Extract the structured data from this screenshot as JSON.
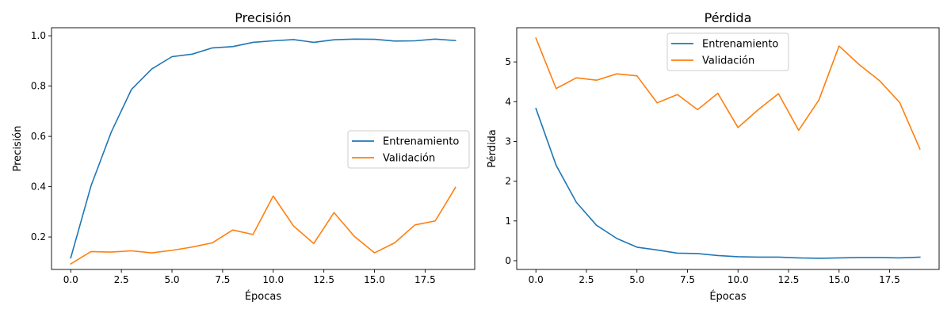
{
  "chart_data": [
    {
      "type": "line",
      "title": "Precisión",
      "xlabel": "Épocas",
      "ylabel": "Precisión",
      "x": [
        0,
        1,
        2,
        3,
        4,
        5,
        6,
        7,
        8,
        9,
        10,
        11,
        12,
        13,
        14,
        15,
        16,
        17,
        18,
        19
      ],
      "xlim": [
        -0.95,
        19.95
      ],
      "ylim": [
        0.071,
        1.032
      ],
      "xticks": [
        0.0,
        2.5,
        5.0,
        7.5,
        10.0,
        12.5,
        15.0,
        17.5
      ],
      "xtick_labels": [
        "0.0",
        "2.5",
        "5.0",
        "7.5",
        "10.0",
        "12.5",
        "15.0",
        "17.5"
      ],
      "yticks": [
        0.2,
        0.4,
        0.6,
        0.8,
        1.0
      ],
      "ytick_labels": [
        "0.2",
        "0.4",
        "0.6",
        "0.8",
        "1.0"
      ],
      "grid": false,
      "legend_position": "center-right",
      "series": [
        {
          "name": "Entrenamiento",
          "color": "#1f77b4",
          "values": [
            0.117,
            0.403,
            0.617,
            0.787,
            0.868,
            0.917,
            0.927,
            0.952,
            0.957,
            0.974,
            0.98,
            0.985,
            0.974,
            0.984,
            0.987,
            0.986,
            0.979,
            0.98,
            0.987,
            0.981
          ]
        },
        {
          "name": "Validación",
          "color": "#ff7f0e",
          "values": [
            0.093,
            0.142,
            0.14,
            0.145,
            0.137,
            0.147,
            0.16,
            0.177,
            0.228,
            0.21,
            0.363,
            0.244,
            0.174,
            0.297,
            0.203,
            0.137,
            0.177,
            0.248,
            0.264,
            0.397
          ]
        }
      ]
    },
    {
      "type": "line",
      "title": "Pérdida",
      "xlabel": "Épocas",
      "ylabel": "Pérdida",
      "x": [
        0,
        1,
        2,
        3,
        4,
        5,
        6,
        7,
        8,
        9,
        10,
        11,
        12,
        13,
        14,
        15,
        16,
        17,
        18,
        19
      ],
      "xlim": [
        -0.95,
        19.95
      ],
      "ylim": [
        -0.22,
        5.86
      ],
      "xticks": [
        0.0,
        2.5,
        5.0,
        7.5,
        10.0,
        12.5,
        15.0,
        17.5
      ],
      "xtick_labels": [
        "0.0",
        "2.5",
        "5.0",
        "7.5",
        "10.0",
        "12.5",
        "15.0",
        "17.5"
      ],
      "yticks": [
        0,
        1,
        2,
        3,
        4,
        5
      ],
      "ytick_labels": [
        "0",
        "1",
        "2",
        "3",
        "4",
        "5"
      ],
      "grid": false,
      "legend_position": "upper-center",
      "series": [
        {
          "name": "Entrenamiento",
          "color": "#1f77b4",
          "values": [
            3.83,
            2.4,
            1.47,
            0.89,
            0.56,
            0.34,
            0.27,
            0.19,
            0.18,
            0.13,
            0.1,
            0.09,
            0.09,
            0.07,
            0.06,
            0.07,
            0.08,
            0.08,
            0.07,
            0.09
          ]
        },
        {
          "name": "Validación",
          "color": "#ff7f0e",
          "values": [
            5.6,
            4.33,
            4.6,
            4.54,
            4.7,
            4.65,
            3.97,
            4.18,
            3.8,
            4.21,
            3.35,
            3.8,
            4.2,
            3.28,
            4.04,
            5.4,
            4.93,
            4.53,
            3.98,
            2.81
          ]
        }
      ]
    }
  ]
}
